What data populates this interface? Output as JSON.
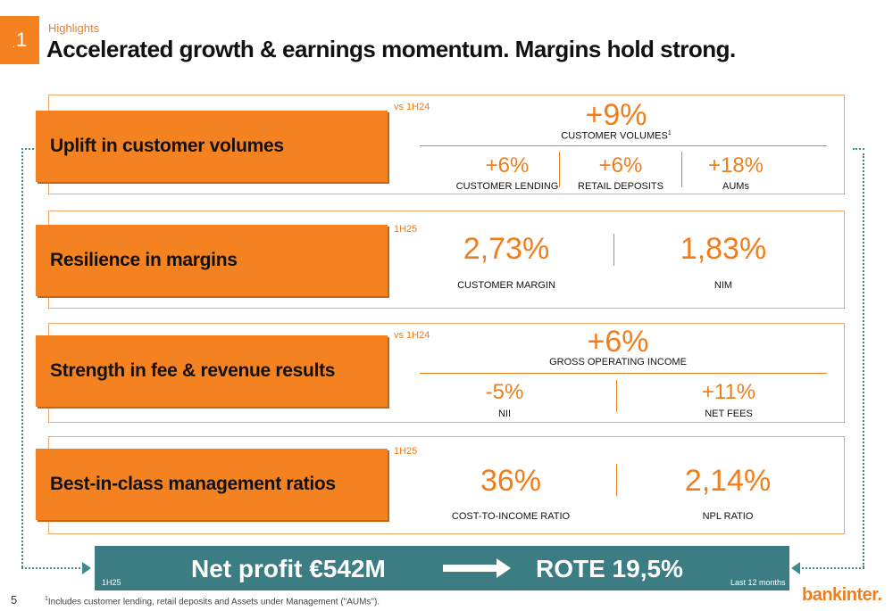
{
  "header": {
    "section_number": "1",
    "kicker": "Highlights",
    "title": "Accelerated growth & earnings momentum. Margins hold strong."
  },
  "rows": [
    {
      "label": "Uplift in customer volumes",
      "period": "vs 1H24",
      "headline_value": "+9%",
      "headline_caption": "CUSTOMER VOLUMES",
      "headline_footnote_mark": "1",
      "metrics": [
        {
          "value": "+6%",
          "caption": "CUSTOMER LENDING"
        },
        {
          "value": "+6%",
          "caption": "RETAIL DEPOSITS"
        },
        {
          "value": "+18%",
          "caption": "AUMs"
        }
      ]
    },
    {
      "label": "Resilience in margins",
      "period": "1H25",
      "metrics": [
        {
          "value": "2,73%",
          "caption": "CUSTOMER MARGIN"
        },
        {
          "value": "1,83%",
          "caption": "NIM"
        }
      ]
    },
    {
      "label": "Strength in fee & revenue results",
      "period": "vs 1H24",
      "headline_value": "+6%",
      "headline_caption": "GROSS OPERATING INCOME",
      "metrics": [
        {
          "value": "-5%",
          "caption": "NII"
        },
        {
          "value": "+11%",
          "caption": "NET FEES"
        }
      ]
    },
    {
      "label": "Best-in-class management ratios",
      "period": "1H25",
      "metrics": [
        {
          "value": "36%",
          "caption": "COST-TO-INCOME RATIO"
        },
        {
          "value": "2,14%",
          "caption": "NPL RATIO"
        }
      ]
    }
  ],
  "summary_bar": {
    "period_left": "1H25",
    "net_profit": "Net profit €542M",
    "rote": "ROTE 19,5%",
    "period_right": "Last 12 months"
  },
  "footer": {
    "page_number": "5",
    "footnote_mark": "1",
    "footnote": "Includes customer lending, retail deposits and Assets under Management (\"AUMs\").",
    "logo_text": "bankinter."
  },
  "colors": {
    "accent": "#f58220",
    "accent_text": "#f07e1b",
    "bar": "#3b7d82"
  }
}
